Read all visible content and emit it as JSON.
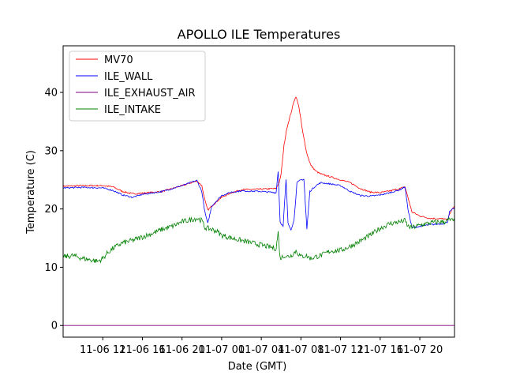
{
  "chart_data": {
    "type": "line",
    "title": "APOLLO ILE Temperatures",
    "xlabel": "Date (GMT)",
    "ylabel": "Temperature (C)",
    "x_unit": "hours",
    "xlim": [
      8.0,
      47.5
    ],
    "ylim": [
      -2,
      48
    ],
    "y_ticks": [
      0,
      10,
      20,
      30,
      40
    ],
    "x_ticks": [
      {
        "x": 12,
        "label": "11-06 12"
      },
      {
        "x": 16,
        "label": "11-06 16"
      },
      {
        "x": 20,
        "label": "11-06 20"
      },
      {
        "x": 24,
        "label": "11-07 00"
      },
      {
        "x": 28,
        "label": "11-07 04"
      },
      {
        "x": 32,
        "label": "11-07 08"
      },
      {
        "x": 36,
        "label": "11-07 12"
      },
      {
        "x": 40,
        "label": "11-07 16"
      },
      {
        "x": 44,
        "label": "11-07 20"
      }
    ],
    "grid": false,
    "legend_position": "top-left",
    "series": [
      {
        "name": "MV70",
        "color": "#ff0000",
        "points": [
          [
            8.0,
            23.9
          ],
          [
            10.0,
            24.0
          ],
          [
            12.0,
            24.0
          ],
          [
            13.0,
            23.8
          ],
          [
            14.0,
            23.0
          ],
          [
            15.0,
            22.6
          ],
          [
            16.0,
            22.7
          ],
          [
            18.0,
            23.0
          ],
          [
            20.0,
            24.0
          ],
          [
            21.5,
            24.8
          ],
          [
            22.0,
            24.0
          ],
          [
            22.3,
            21.5
          ],
          [
            22.6,
            19.8
          ],
          [
            23.0,
            20.5
          ],
          [
            24.0,
            22.0
          ],
          [
            25.0,
            22.8
          ],
          [
            26.0,
            23.3
          ],
          [
            28.0,
            23.4
          ],
          [
            29.5,
            23.5
          ],
          [
            29.8,
            24.5
          ],
          [
            30.0,
            26.0
          ],
          [
            30.3,
            31.0
          ],
          [
            30.6,
            34.0
          ],
          [
            31.0,
            36.5
          ],
          [
            31.3,
            38.5
          ],
          [
            31.5,
            39.3
          ],
          [
            31.8,
            37.5
          ],
          [
            32.2,
            33.0
          ],
          [
            32.6,
            29.5
          ],
          [
            33.0,
            27.5
          ],
          [
            33.5,
            26.5
          ],
          [
            34.0,
            26.0
          ],
          [
            35.0,
            25.5
          ],
          [
            36.0,
            25.0
          ],
          [
            37.0,
            24.5
          ],
          [
            38.0,
            23.5
          ],
          [
            39.0,
            22.9
          ],
          [
            40.0,
            22.8
          ],
          [
            41.0,
            23.1
          ],
          [
            42.0,
            23.5
          ],
          [
            42.5,
            23.8
          ],
          [
            42.8,
            22.0
          ],
          [
            43.2,
            19.5
          ],
          [
            44.0,
            18.8
          ],
          [
            45.0,
            18.4
          ],
          [
            46.5,
            18.3
          ],
          [
            46.8,
            18.0
          ],
          [
            47.0,
            19.2
          ],
          [
            47.5,
            20.5
          ]
        ]
      },
      {
        "name": "ILE_WALL",
        "color": "#0000ff",
        "points": [
          [
            8.0,
            23.6
          ],
          [
            10.0,
            23.7
          ],
          [
            12.0,
            23.6
          ],
          [
            13.0,
            23.2
          ],
          [
            14.0,
            22.4
          ],
          [
            15.0,
            22.0
          ],
          [
            16.0,
            22.5
          ],
          [
            18.0,
            23.0
          ],
          [
            20.0,
            24.0
          ],
          [
            21.5,
            24.9
          ],
          [
            22.0,
            23.0
          ],
          [
            22.3,
            19.5
          ],
          [
            22.6,
            17.5
          ],
          [
            23.0,
            20.5
          ],
          [
            24.0,
            22.3
          ],
          [
            25.0,
            22.9
          ],
          [
            26.0,
            23.1
          ],
          [
            28.0,
            23.0
          ],
          [
            29.5,
            22.8
          ],
          [
            29.7,
            26.5
          ],
          [
            29.9,
            17.8
          ],
          [
            30.2,
            17.0
          ],
          [
            30.5,
            25.0
          ],
          [
            30.7,
            17.5
          ],
          [
            31.0,
            16.5
          ],
          [
            31.3,
            18.0
          ],
          [
            31.6,
            24.5
          ],
          [
            32.0,
            25.0
          ],
          [
            32.3,
            25.1
          ],
          [
            32.6,
            16.5
          ],
          [
            32.9,
            23.0
          ],
          [
            33.5,
            24.0
          ],
          [
            34.0,
            24.5
          ],
          [
            35.0,
            24.3
          ],
          [
            36.0,
            24.0
          ],
          [
            37.0,
            23.0
          ],
          [
            38.0,
            22.3
          ],
          [
            39.0,
            22.2
          ],
          [
            40.0,
            22.4
          ],
          [
            41.0,
            22.8
          ],
          [
            42.0,
            23.3
          ],
          [
            42.5,
            23.8
          ],
          [
            42.8,
            20.0
          ],
          [
            43.2,
            16.8
          ],
          [
            44.0,
            17.0
          ],
          [
            45.0,
            17.3
          ],
          [
            46.5,
            17.5
          ],
          [
            46.8,
            17.8
          ],
          [
            47.0,
            19.5
          ],
          [
            47.5,
            20.2
          ]
        ]
      },
      {
        "name": "ILE_EXHAUST_AIR",
        "color": "#800080",
        "points": [
          [
            8.0,
            0.0
          ],
          [
            47.5,
            0.0
          ]
        ]
      },
      {
        "name": "ILE_INTAKE",
        "color": "#008000",
        "points": [
          [
            8.0,
            11.8
          ],
          [
            9.0,
            12.0
          ],
          [
            10.0,
            11.5
          ],
          [
            11.0,
            11.2
          ],
          [
            11.5,
            11.0
          ],
          [
            12.0,
            11.5
          ],
          [
            12.5,
            12.5
          ],
          [
            13.0,
            13.2
          ],
          [
            14.0,
            14.2
          ],
          [
            15.0,
            14.6
          ],
          [
            16.0,
            15.2
          ],
          [
            17.0,
            15.8
          ],
          [
            18.0,
            16.5
          ],
          [
            19.0,
            17.0
          ],
          [
            20.0,
            17.8
          ],
          [
            21.0,
            18.2
          ],
          [
            21.5,
            18.4
          ],
          [
            22.0,
            18.0
          ],
          [
            22.3,
            16.8
          ],
          [
            23.0,
            16.5
          ],
          [
            23.5,
            16.2
          ],
          [
            24.0,
            15.5
          ],
          [
            25.0,
            15.0
          ],
          [
            26.0,
            14.6
          ],
          [
            27.0,
            14.2
          ],
          [
            28.0,
            13.8
          ],
          [
            29.0,
            13.4
          ],
          [
            29.5,
            13.2
          ],
          [
            29.7,
            16.0
          ],
          [
            29.9,
            11.5
          ],
          [
            30.3,
            12.0
          ],
          [
            30.6,
            11.8
          ],
          [
            31.0,
            12.0
          ],
          [
            31.5,
            12.8
          ],
          [
            32.0,
            11.8
          ],
          [
            32.5,
            12.0
          ],
          [
            33.0,
            11.5
          ],
          [
            33.5,
            11.8
          ],
          [
            34.0,
            12.0
          ],
          [
            35.0,
            12.8
          ],
          [
            36.0,
            12.9
          ],
          [
            37.0,
            13.6
          ],
          [
            38.0,
            14.5
          ],
          [
            39.0,
            15.5
          ],
          [
            40.0,
            16.7
          ],
          [
            41.0,
            17.5
          ],
          [
            42.0,
            17.8
          ],
          [
            42.5,
            18.0
          ],
          [
            42.8,
            17.0
          ],
          [
            43.2,
            16.8
          ],
          [
            44.0,
            17.2
          ],
          [
            45.0,
            17.6
          ],
          [
            46.0,
            17.8
          ],
          [
            46.5,
            17.8
          ],
          [
            47.0,
            18.2
          ],
          [
            47.5,
            17.8
          ]
        ]
      }
    ]
  }
}
